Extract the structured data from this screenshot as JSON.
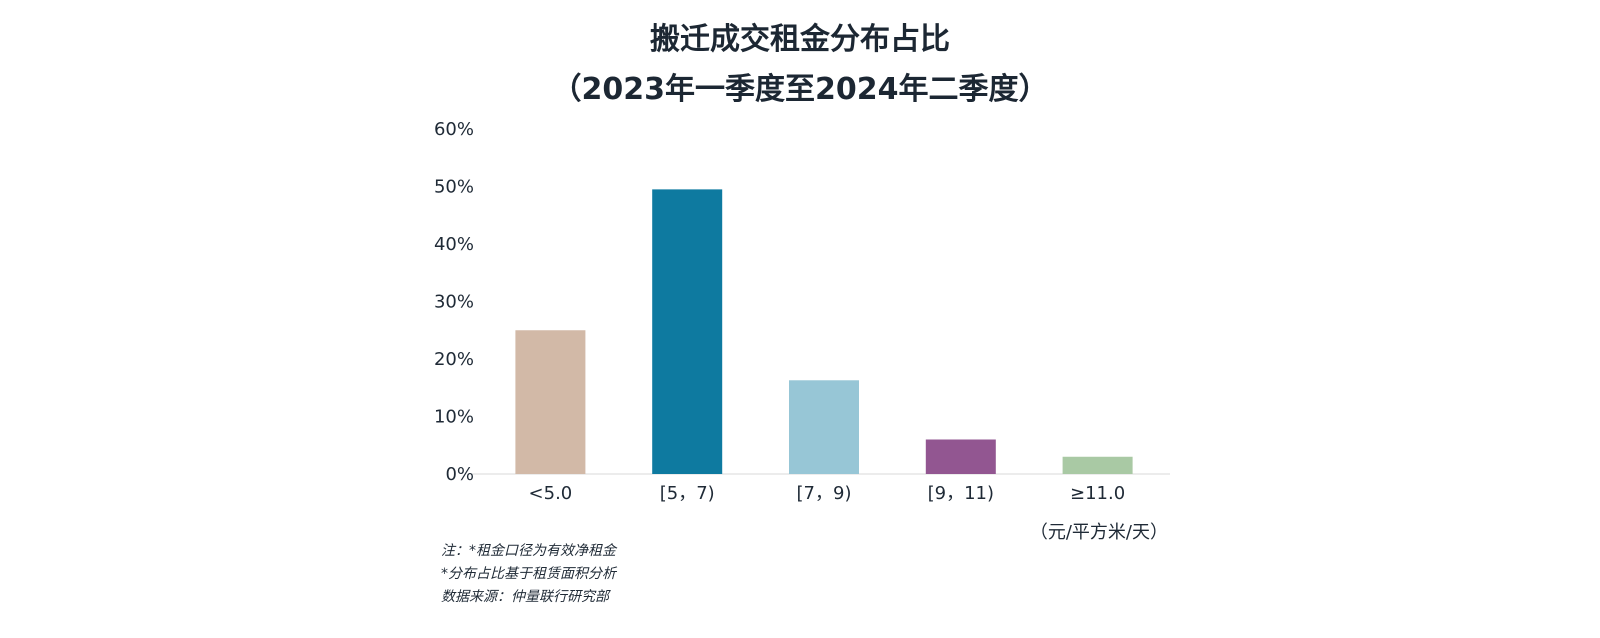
{
  "chart_data": {
    "type": "bar",
    "title": "搬迁成交租金分布占比",
    "subtitle": "（2023年一季度至2024年二季度）",
    "categories": [
      "<5.0",
      "[5，7)",
      "[7，9)",
      "[9，11)",
      "≥11.0"
    ],
    "values": [
      25,
      49.5,
      16.3,
      6,
      3
    ],
    "colors": [
      "#d2b9a7",
      "#0e7aa0",
      "#97c6d6",
      "#925691",
      "#a9c9a4"
    ],
    "ylim": [
      0,
      60
    ],
    "yticks": [
      "0%",
      "10%",
      "20%",
      "30%",
      "40%",
      "50%",
      "60%"
    ],
    "ylabel": "",
    "xlabel": "",
    "x_unit": "（元/平方米/天）",
    "grid": false,
    "legend": "none"
  },
  "notes": [
    "注：*租金口径为有效净租金",
    "*分布占比基于租赁面积分析",
    "数据来源：仲量联行研究部"
  ]
}
